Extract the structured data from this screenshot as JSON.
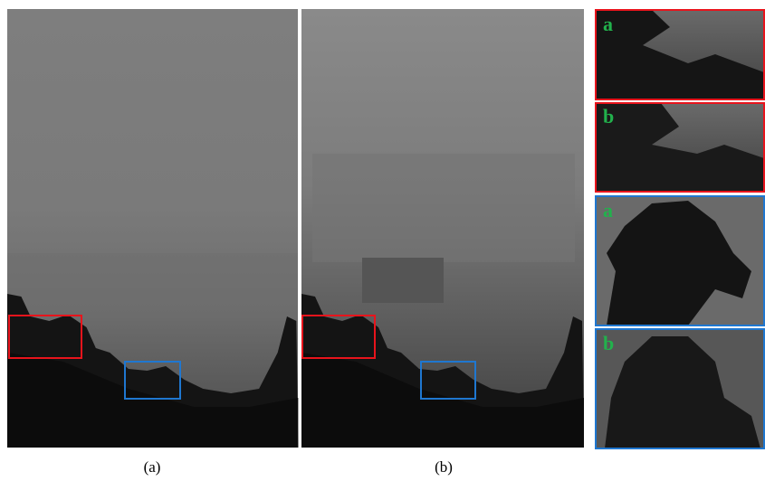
{
  "panels": [
    {
      "caption": "(a)"
    },
    {
      "caption": "(b)"
    }
  ],
  "insets": [
    {
      "label": "a"
    },
    {
      "label": "b"
    },
    {
      "label": "a"
    },
    {
      "label": "b"
    }
  ]
}
